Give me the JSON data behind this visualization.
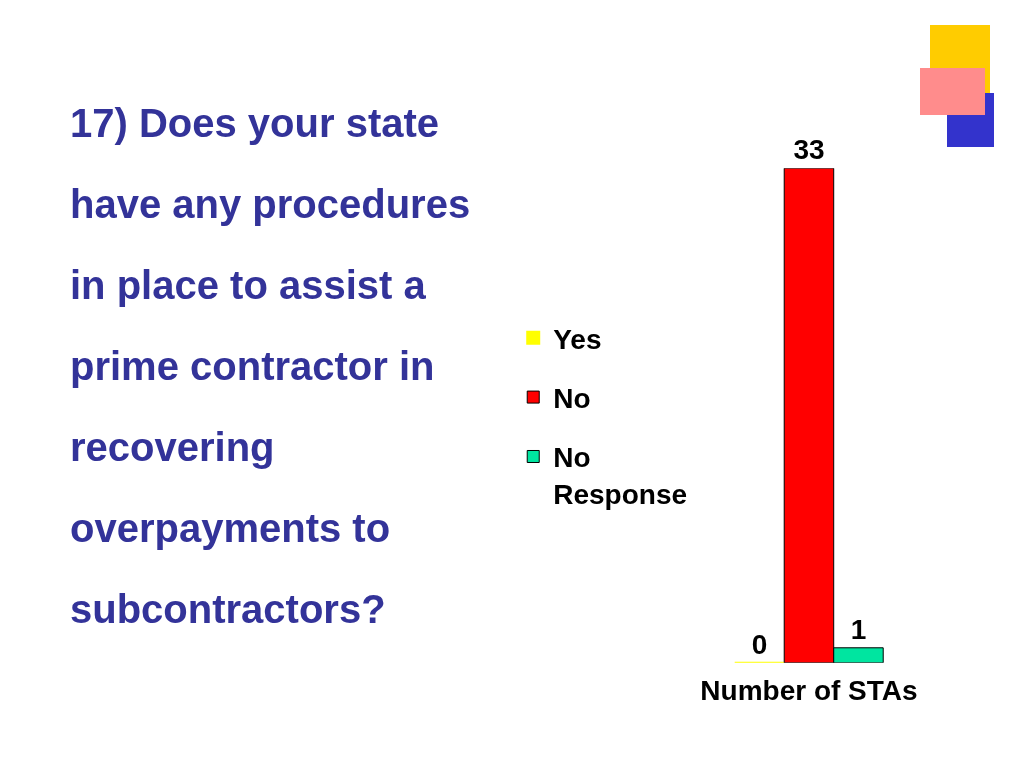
{
  "chart_data": {
    "type": "bar",
    "title": "17) Does your state have any procedures in place to assist a prime contractor in recovering overpayments to subcontractors?",
    "categories": [
      "Number of STAs"
    ],
    "series": [
      {
        "name": "Yes",
        "color": "#ffff00",
        "values": [
          0
        ]
      },
      {
        "name": "No",
        "color": "#ff0000",
        "values": [
          33
        ]
      },
      {
        "name": "No Response",
        "color": "#00e5a0",
        "values": [
          1
        ]
      }
    ],
    "data_labels": true,
    "legend": "left",
    "tick_labels": "x"
  }
}
